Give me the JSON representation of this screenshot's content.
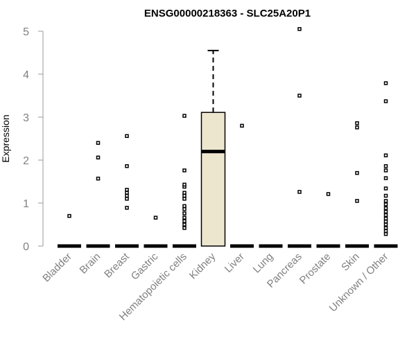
{
  "chart_data": {
    "type": "box",
    "title": "ENSG00000218363 - SLC25A20P1",
    "ylabel": "Expression",
    "xlabel": "",
    "ylim": [
      0,
      5
    ],
    "yticks": [
      0,
      1,
      2,
      3,
      4,
      5
    ],
    "grid": false,
    "legend": "none",
    "colors": {
      "box_fill": "#ede6cf",
      "box_stroke": "#000000",
      "axis": "#999999",
      "tick_label": "#808080",
      "title": "#000000"
    },
    "categories": [
      "Bladder",
      "Brain",
      "Breast",
      "Gastric",
      "Hematopoietic cells",
      "Kidney",
      "Liver",
      "Lung",
      "Pancreas",
      "Prostate",
      "Skin",
      "Unknown / Other"
    ],
    "boxes": [
      {
        "category": "Bladder",
        "q1": 0,
        "median": 0,
        "q3": 0,
        "whisker_low": 0,
        "whisker_high": 0,
        "outliers": [
          0.7
        ]
      },
      {
        "category": "Brain",
        "q1": 0,
        "median": 0,
        "q3": 0,
        "whisker_low": 0,
        "whisker_high": 0,
        "outliers": [
          1.57,
          2.06,
          2.4
        ]
      },
      {
        "category": "Breast",
        "q1": 0,
        "median": 0,
        "q3": 0,
        "whisker_low": 0,
        "whisker_high": 0,
        "outliers": [
          0.89,
          1.1,
          1.17,
          1.24,
          1.31,
          1.86,
          2.56
        ]
      },
      {
        "category": "Gastric",
        "q1": 0,
        "median": 0,
        "q3": 0,
        "whisker_low": 0,
        "whisker_high": 0,
        "outliers": [
          0.66
        ]
      },
      {
        "category": "Hematopoietic cells",
        "q1": 0,
        "median": 0,
        "q3": 0,
        "whisker_low": 0,
        "whisker_high": 0,
        "outliers": [
          0.42,
          0.5,
          0.58,
          0.66,
          0.76,
          0.86,
          0.93,
          1.1,
          1.17,
          1.24,
          1.38,
          1.43,
          1.76,
          3.03
        ]
      },
      {
        "category": "Kidney",
        "q1": 0,
        "median": 2.2,
        "q3": 3.11,
        "whisker_low": 0,
        "whisker_high": 4.55,
        "outliers": []
      },
      {
        "category": "Liver",
        "q1": 0,
        "median": 0,
        "q3": 0,
        "whisker_low": 0,
        "whisker_high": 0,
        "outliers": [
          2.8
        ]
      },
      {
        "category": "Lung",
        "q1": 0,
        "median": 0,
        "q3": 0,
        "whisker_low": 0,
        "whisker_high": 0,
        "outliers": []
      },
      {
        "category": "Pancreas",
        "q1": 0,
        "median": 0,
        "q3": 0,
        "whisker_low": 0,
        "whisker_high": 0,
        "outliers": [
          1.26,
          3.5,
          5.05
        ]
      },
      {
        "category": "Prostate",
        "q1": 0,
        "median": 0,
        "q3": 0,
        "whisker_low": 0,
        "whisker_high": 0,
        "outliers": [
          1.21
        ]
      },
      {
        "category": "Skin",
        "q1": 0,
        "median": 0,
        "q3": 0,
        "whisker_low": 0,
        "whisker_high": 0,
        "outliers": [
          1.05,
          1.7,
          2.76,
          2.86
        ]
      },
      {
        "category": "Unknown / Other",
        "q1": 0,
        "median": 0,
        "q3": 0,
        "whisker_low": 0,
        "whisker_high": 0,
        "outliers": [
          0.28,
          0.35,
          0.42,
          0.5,
          0.57,
          0.64,
          0.72,
          0.8,
          0.88,
          0.97,
          1.05,
          1.17,
          1.34,
          1.58,
          1.76,
          1.86,
          2.11,
          3.37,
          3.79
        ]
      }
    ]
  }
}
